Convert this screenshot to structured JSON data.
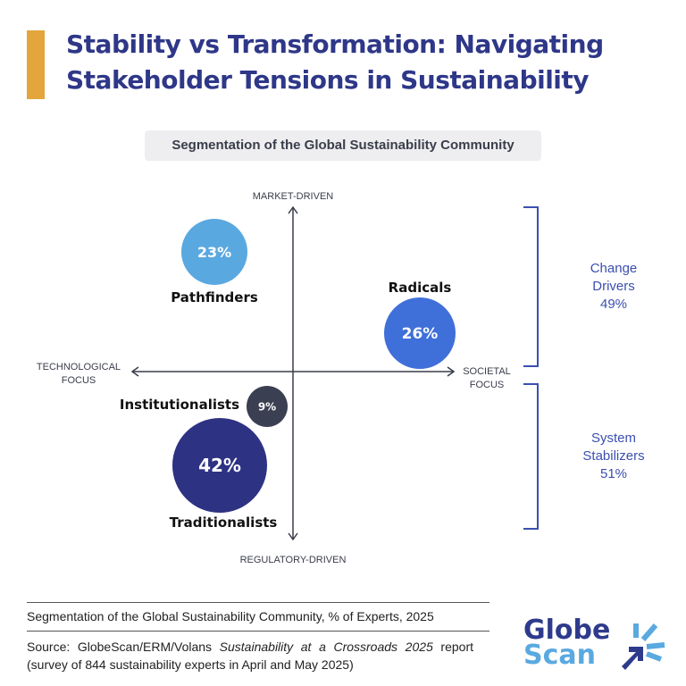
{
  "title": "Stability vs Transformation: Navigating Stakeholder Tensions in Sustainability",
  "subtitle": "Segmentation of the Global Sustainability Community",
  "axes": {
    "top": "MARKET-DRIVEN",
    "bottom": "REGULATORY-DRIVEN",
    "left": [
      "TECHNOLOGICAL",
      "FOCUS"
    ],
    "right": [
      "SOCIETAL",
      "FOCUS"
    ]
  },
  "segments": [
    {
      "name": "Pathfinders",
      "value": "23%",
      "color": "#5aa8e0"
    },
    {
      "name": "Radicals",
      "value": "26%",
      "color": "#3f6fd9"
    },
    {
      "name": "Institutionalists",
      "value": "9%",
      "color": "#3a3f52"
    },
    {
      "name": "Traditionalists",
      "value": "42%",
      "color": "#2e3283"
    }
  ],
  "groups": [
    {
      "lines": [
        "Change",
        "Drivers",
        "49%"
      ]
    },
    {
      "lines": [
        "System",
        "Stabilizers",
        "51%"
      ]
    }
  ],
  "footer": {
    "caption": "Segmentation of the Global Sustainability Community, % of Experts, 2025",
    "source_prefix": "Source: GlobeScan/ERM/Volans ",
    "source_title": "Sustainability at a Crossroads 2025",
    "source_suffix": " report (survey of 844 sustainability experts in April and May 2025)"
  },
  "logo": {
    "line1": "Globe",
    "line2": "Scan"
  },
  "colors": {
    "title": "#2e3788",
    "accent_bar": "#e3a53c",
    "group_label": "#3b4fb0"
  }
}
